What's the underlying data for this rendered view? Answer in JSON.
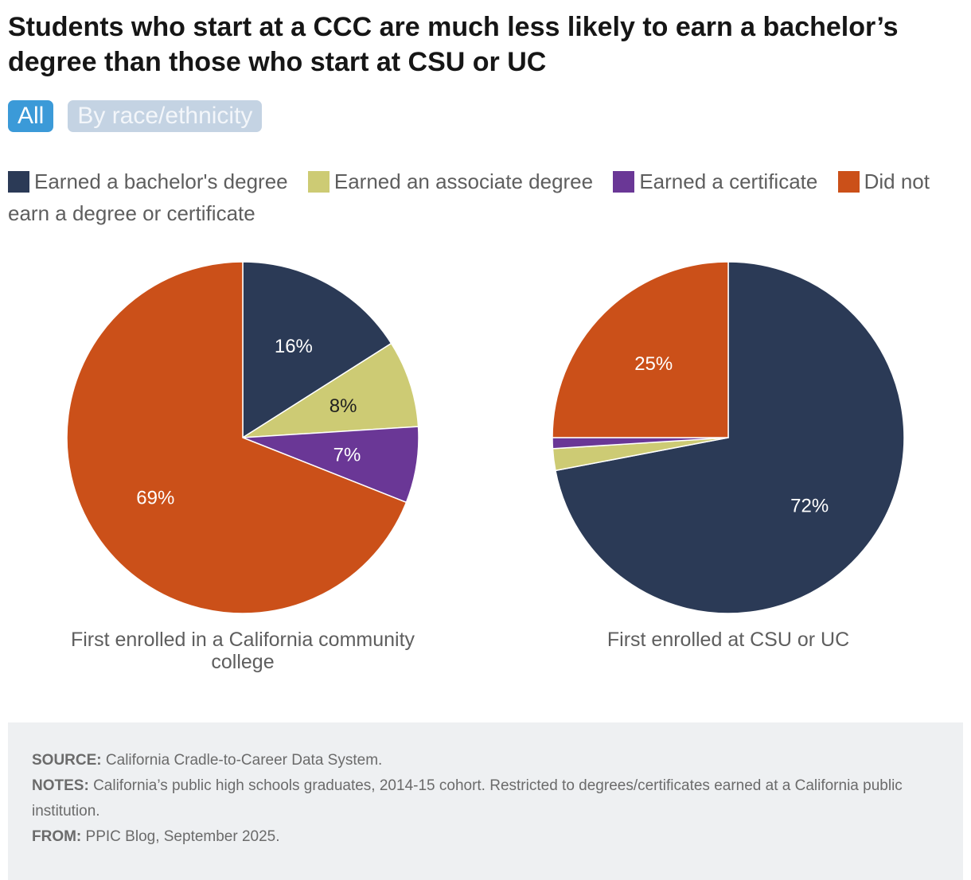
{
  "title": "Students who start at a CCC are much less likely to earn a bachelor’s degree than those who start at CSU or UC",
  "tabs": [
    {
      "label": "All",
      "active": true
    },
    {
      "label": "By race/ethnicity",
      "active": false
    }
  ],
  "colors": {
    "bachelor": "#2b3a56",
    "associate": "#cdcb74",
    "certificate": "#6a3796",
    "none": "#cb5019"
  },
  "legend": [
    {
      "label": "Earned a bachelor's degree",
      "color": "#2b3a56"
    },
    {
      "label": "Earned an associate degree",
      "color": "#cdcb74"
    },
    {
      "label": "Earned a certificate",
      "color": "#6a3796"
    },
    {
      "label": "Did not earn a degree or certificate",
      "color": "#cb5019"
    }
  ],
  "chart_data": [
    {
      "type": "pie",
      "title": "First enrolled in a California community college",
      "categories": [
        "Earned a bachelor's degree",
        "Earned an associate degree",
        "Earned a certificate",
        "Did not earn a degree or certificate"
      ],
      "values": [
        16,
        8,
        7,
        69
      ],
      "labels": [
        "16%",
        "8%",
        "7%",
        "69%"
      ],
      "colors": [
        "#2b3a56",
        "#cdcb74",
        "#6a3796",
        "#cb5019"
      ]
    },
    {
      "type": "pie",
      "title": "First enrolled at CSU or UC",
      "categories": [
        "Earned a bachelor's degree",
        "Earned an associate degree",
        "Earned a certificate",
        "Did not earn a degree or certificate"
      ],
      "values": [
        72,
        2,
        1,
        25
      ],
      "labels": [
        "72%",
        "",
        "",
        "25%"
      ],
      "colors": [
        "#2b3a56",
        "#cdcb74",
        "#6a3796",
        "#cb5019"
      ]
    }
  ],
  "notes": {
    "source_label": "SOURCE:",
    "source": "California Cradle-to-Career Data System.",
    "notes_label": "NOTES:",
    "notes": "California’s public high schools graduates, 2014-15 cohort. Restricted to degrees/certificates earned at a California public institution.",
    "from_label": "FROM:",
    "from": "PPIC Blog, September 2025."
  }
}
